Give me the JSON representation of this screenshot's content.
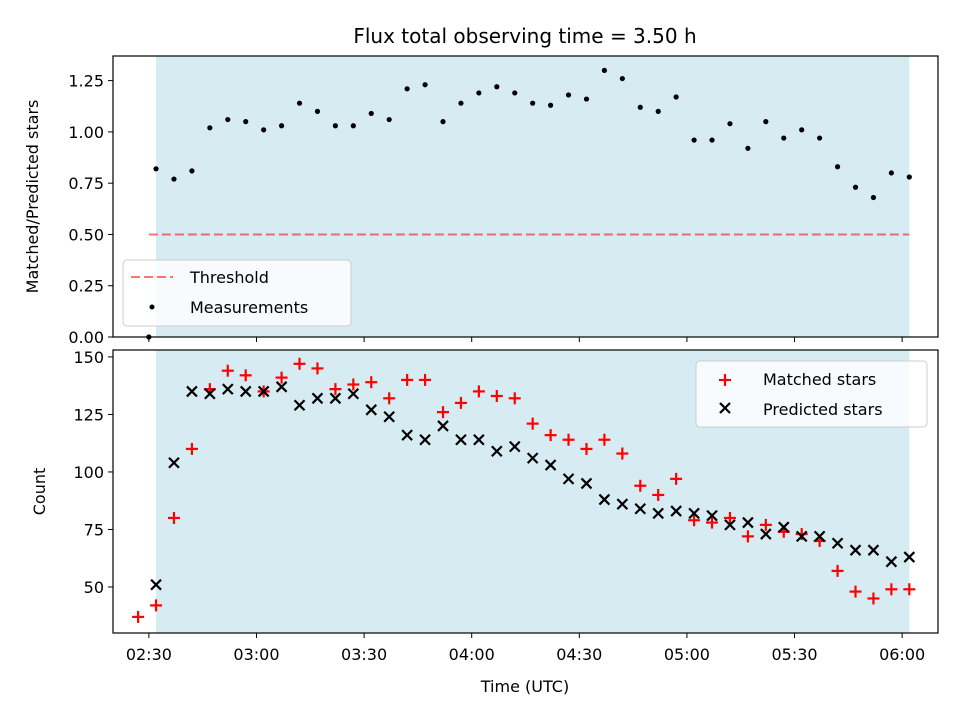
{
  "chart_data": [
    {
      "type": "scatter",
      "title": "Flux total observing time = 3.50 h",
      "xlabel": "",
      "ylabel": "Matched/Predicted stars",
      "xlim": [
        "02:20",
        "06:10"
      ],
      "ylim": [
        0,
        1.37
      ],
      "yticks": [
        "0.00",
        "0.25",
        "0.50",
        "0.75",
        "1.00",
        "1.25"
      ],
      "observing_window": [
        "02:32",
        "06:02"
      ],
      "threshold": 0.5,
      "threshold_x": [
        "02:30",
        "06:02"
      ],
      "series": [
        {
          "name": "Measurements",
          "color": "#000000",
          "x": [
            "02:30",
            "02:32",
            "02:37",
            "02:42",
            "02:47",
            "02:52",
            "02:57",
            "03:02",
            "03:07",
            "03:12",
            "03:17",
            "03:22",
            "03:27",
            "03:32",
            "03:37",
            "03:42",
            "03:47",
            "03:52",
            "03:57",
            "04:02",
            "04:07",
            "04:12",
            "04:17",
            "04:22",
            "04:27",
            "04:32",
            "04:37",
            "04:42",
            "04:47",
            "04:52",
            "04:57",
            "05:02",
            "05:07",
            "05:12",
            "05:17",
            "05:22",
            "05:27",
            "05:32",
            "05:37",
            "05:42",
            "05:47",
            "05:52",
            "05:57",
            "06:02"
          ],
          "y": [
            0.0,
            0.82,
            0.77,
            0.81,
            1.02,
            1.06,
            1.05,
            1.01,
            1.03,
            1.14,
            1.1,
            1.03,
            1.03,
            1.09,
            1.06,
            1.21,
            1.23,
            1.05,
            1.14,
            1.19,
            1.22,
            1.19,
            1.14,
            1.13,
            1.18,
            1.16,
            1.3,
            1.26,
            1.12,
            1.1,
            1.17,
            0.96,
            0.96,
            1.04,
            0.92,
            1.05,
            0.97,
            1.01,
            0.97,
            0.83,
            0.73,
            0.68,
            0.8,
            0.78
          ]
        }
      ],
      "legend": [
        "Threshold",
        "Measurements"
      ],
      "legend_position": "lower-left"
    },
    {
      "type": "scatter",
      "title": "",
      "xlabel": "Time (UTC)",
      "ylabel": "Count",
      "xlim": [
        "02:20",
        "06:10"
      ],
      "ylim": [
        30,
        153
      ],
      "xticks": [
        "02:30",
        "03:00",
        "03:30",
        "04:00",
        "04:30",
        "05:00",
        "05:30",
        "06:00"
      ],
      "yticks": [
        "50",
        "75",
        "100",
        "125",
        "150"
      ],
      "observing_window": [
        "02:32",
        "06:02"
      ],
      "series": [
        {
          "name": "Matched stars",
          "color": "#ff0000",
          "marker": "plus",
          "x": [
            "02:27",
            "02:32",
            "02:37",
            "02:42",
            "02:47",
            "02:52",
            "02:57",
            "03:02",
            "03:07",
            "03:12",
            "03:17",
            "03:22",
            "03:27",
            "03:32",
            "03:37",
            "03:42",
            "03:47",
            "03:52",
            "03:57",
            "04:02",
            "04:07",
            "04:12",
            "04:17",
            "04:22",
            "04:27",
            "04:32",
            "04:37",
            "04:42",
            "04:47",
            "04:52",
            "04:57",
            "05:02",
            "05:07",
            "05:12",
            "05:17",
            "05:22",
            "05:27",
            "05:32",
            "05:37",
            "05:42",
            "05:47",
            "05:52",
            "05:57",
            "06:02"
          ],
          "y": [
            37,
            42,
            80,
            110,
            136,
            144,
            142,
            135,
            141,
            147,
            145,
            136,
            138,
            139,
            132,
            140,
            140,
            126,
            130,
            135,
            133,
            132,
            121,
            116,
            114,
            110,
            114,
            108,
            94,
            90,
            97,
            79,
            78,
            80,
            72,
            77,
            74,
            73,
            70,
            57,
            48,
            45,
            49,
            49
          ]
        },
        {
          "name": "Predicted stars",
          "color": "#000000",
          "marker": "x",
          "x": [
            "02:32",
            "02:37",
            "02:42",
            "02:47",
            "02:52",
            "02:57",
            "03:02",
            "03:07",
            "03:12",
            "03:17",
            "03:22",
            "03:27",
            "03:32",
            "03:37",
            "03:42",
            "03:47",
            "03:52",
            "03:57",
            "04:02",
            "04:07",
            "04:12",
            "04:17",
            "04:22",
            "04:27",
            "04:32",
            "04:37",
            "04:42",
            "04:47",
            "04:52",
            "04:57",
            "05:02",
            "05:07",
            "05:12",
            "05:17",
            "05:22",
            "05:27",
            "05:32",
            "05:37",
            "05:42",
            "05:47",
            "05:52",
            "05:57",
            "06:02"
          ],
          "y": [
            51,
            104,
            135,
            134,
            136,
            135,
            135,
            137,
            129,
            132,
            132,
            134,
            127,
            124,
            116,
            114,
            120,
            114,
            114,
            109,
            111,
            106,
            103,
            97,
            95,
            88,
            86,
            84,
            82,
            83,
            82,
            81,
            77,
            78,
            73,
            76,
            72,
            72,
            69,
            66,
            66,
            61,
            63
          ]
        }
      ],
      "legend": [
        "Matched stars",
        "Predicted stars"
      ],
      "legend_position": "upper-right"
    }
  ]
}
